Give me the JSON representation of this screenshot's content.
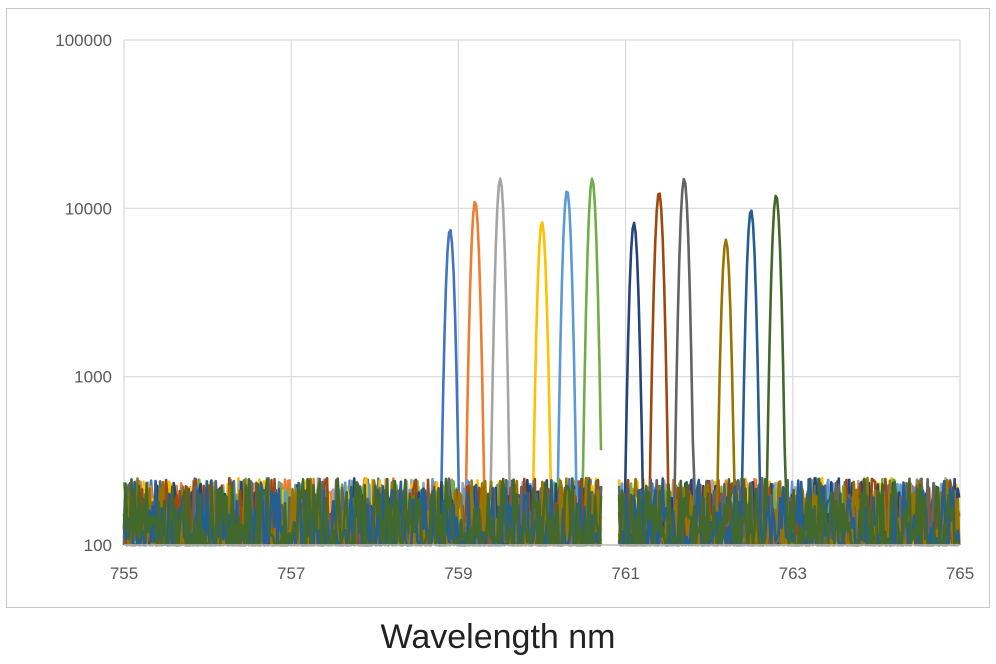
{
  "chart_data": {
    "type": "line",
    "title": "",
    "xlabel": "Wavelength nm",
    "ylabel": "",
    "xlim": [
      755,
      765
    ],
    "ylim": [
      100,
      100000
    ],
    "y_scale": "log",
    "x_ticks": [
      "755",
      "757",
      "759",
      "761",
      "763",
      "765"
    ],
    "y_ticks": [
      "100",
      "1000",
      "10000",
      "100000"
    ],
    "grid": true,
    "legend": "none",
    "noise_floor": [
      100,
      250
    ],
    "series": [
      {
        "color": "#4472C4",
        "peak_x": 758.9,
        "peak_y": 7500
      },
      {
        "color": "#ED7D31",
        "peak_x": 759.2,
        "peak_y": 11000
      },
      {
        "color": "#A5A5A5",
        "peak_x": 759.5,
        "peak_y": 15000
      },
      {
        "color": "#FFC000",
        "peak_x": 760.0,
        "peak_y": 8300
      },
      {
        "color": "#5B9BD5",
        "peak_x": 760.3,
        "peak_y": 12800
      },
      {
        "color": "#70AD47",
        "peak_x": 760.6,
        "peak_y": 15000
      },
      {
        "color": "#264478",
        "peak_x": 761.1,
        "peak_y": 8200
      },
      {
        "color": "#9E480E",
        "peak_x": 761.4,
        "peak_y": 12500
      },
      {
        "color": "#636363",
        "peak_x": 761.7,
        "peak_y": 15000
      },
      {
        "color": "#997300",
        "peak_x": 762.2,
        "peak_y": 6500
      },
      {
        "color": "#255E91",
        "peak_x": 762.5,
        "peak_y": 9800
      },
      {
        "color": "#43682B",
        "peak_x": 762.8,
        "peak_y": 12000
      }
    ]
  }
}
